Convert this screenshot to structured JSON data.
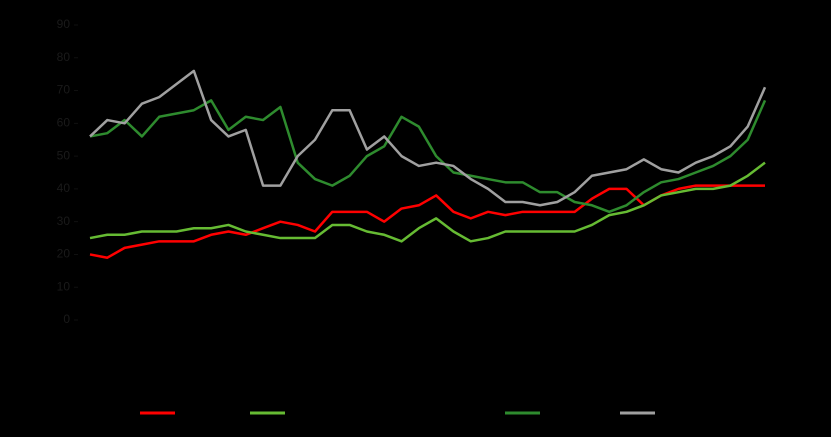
{
  "chart_data": {
    "type": "line",
    "categories": [
      null,
      null,
      null,
      null,
      null,
      null,
      null,
      null,
      null,
      null,
      null,
      null,
      null,
      null,
      null,
      null,
      null,
      null,
      null,
      null,
      null,
      null,
      null,
      null,
      null,
      null,
      null,
      null,
      null,
      null,
      null,
      null,
      null,
      null,
      null,
      null,
      null,
      null,
      null,
      null
    ],
    "ylim": [
      0,
      90
    ],
    "yticks": [
      0,
      10,
      20,
      30,
      40,
      50,
      60,
      70,
      80,
      90
    ],
    "series": [
      {
        "color": "#ff0000",
        "values": [
          20,
          19,
          22,
          23,
          24,
          24,
          24,
          26,
          27,
          26,
          28,
          30,
          29,
          27,
          33,
          33,
          33,
          30,
          34,
          35,
          38,
          33,
          31,
          33,
          32,
          33,
          33,
          33,
          33,
          37,
          40,
          40,
          35,
          38,
          40,
          41,
          41,
          41,
          41,
          41
        ]
      },
      {
        "color": "#66bb33",
        "values": [
          25,
          26,
          26,
          27,
          27,
          27,
          28,
          28,
          29,
          27,
          26,
          25,
          25,
          25,
          29,
          29,
          27,
          26,
          24,
          28,
          31,
          27,
          24,
          25,
          27,
          27,
          27,
          27,
          27,
          29,
          32,
          33,
          35,
          38,
          39,
          40,
          40,
          41,
          44,
          48
        ]
      },
      {
        "color": "#2e8b2e",
        "values": [
          56,
          57,
          61,
          56,
          62,
          63,
          64,
          67,
          58,
          62,
          61,
          65,
          48,
          43,
          41,
          44,
          50,
          53,
          62,
          59,
          50,
          45,
          44,
          43,
          42,
          42,
          39,
          39,
          36,
          35,
          33,
          35,
          39,
          42,
          43,
          45,
          47,
          50,
          55,
          67
        ]
      },
      {
        "color": "#a0a0a0",
        "values": [
          56,
          61,
          60,
          66,
          68,
          72,
          76,
          61,
          56,
          58,
          41,
          41,
          50,
          55,
          64,
          64,
          52,
          56,
          50,
          47,
          48,
          47,
          43,
          40,
          36,
          36,
          35,
          36,
          39,
          44,
          45,
          46,
          49,
          46,
          45,
          48,
          50,
          53,
          59,
          71
        ]
      }
    ]
  }
}
